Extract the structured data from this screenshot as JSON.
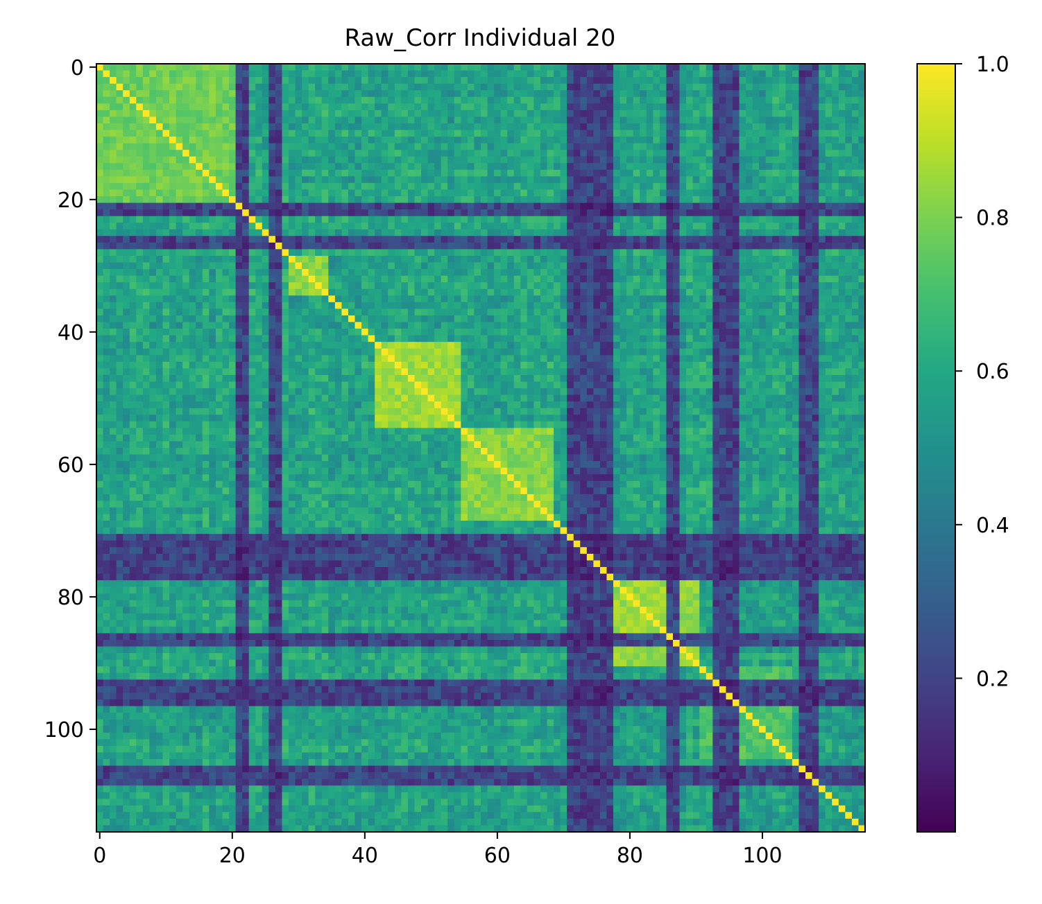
{
  "chart_data": {
    "type": "heatmap",
    "title": "Raw_Corr Individual 20",
    "xlabel": "",
    "ylabel": "",
    "n": 116,
    "colormap": "viridis",
    "vmin": 0.0,
    "vmax": 1.0,
    "x_ticks": [
      0,
      20,
      40,
      60,
      80,
      100
    ],
    "y_ticks": [
      0,
      20,
      40,
      60,
      80,
      100
    ],
    "x_tick_labels": [
      "0",
      "20",
      "40",
      "60",
      "80",
      "100"
    ],
    "y_tick_labels": [
      "0",
      "20",
      "40",
      "60",
      "80",
      "100"
    ],
    "colorbar": {
      "ticks": [
        0.2,
        0.4,
        0.6,
        0.8,
        1.0
      ],
      "tick_labels": [
        "0.2",
        "0.4",
        "0.6",
        "0.8",
        "1.0"
      ]
    },
    "diagonal_value": 1.0,
    "typical_value": 0.58,
    "low_correlation_regions": [
      21,
      22,
      26,
      27,
      71,
      72,
      73,
      74,
      75,
      76,
      77,
      86,
      87,
      93,
      94,
      95,
      96,
      106,
      107,
      108
    ],
    "high_correlation_blocks": [
      {
        "from": 0,
        "to": 20,
        "value": 0.78
      },
      {
        "from": 29,
        "to": 34,
        "value": 0.82
      },
      {
        "from": 42,
        "to": 54,
        "value": 0.86
      },
      {
        "from": 55,
        "to": 68,
        "value": 0.82
      },
      {
        "from": 78,
        "to": 90,
        "value": 0.84
      },
      {
        "from": 90,
        "to": 104,
        "value": 0.72
      }
    ]
  }
}
